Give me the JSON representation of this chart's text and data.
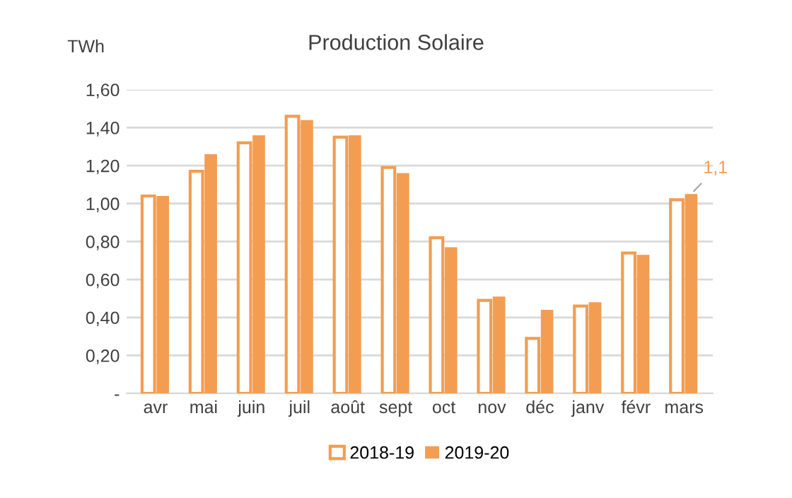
{
  "chart_data": {
    "type": "bar",
    "title": "Production Solaire",
    "ylabel": "TWh",
    "categories": [
      "avr",
      "mai",
      "juin",
      "juil",
      "août",
      "sept",
      "oct",
      "nov",
      "déc",
      "janv",
      "févr",
      "mars"
    ],
    "series": [
      {
        "name": "2018-19",
        "color": "#f29d52",
        "values": [
          1.04,
          1.17,
          1.32,
          1.46,
          1.35,
          1.19,
          0.82,
          0.49,
          0.29,
          0.46,
          0.74,
          1.02
        ]
      },
      {
        "name": "2019-20",
        "color": "#f29d52",
        "values": [
          1.04,
          1.26,
          1.36,
          1.44,
          1.36,
          1.16,
          0.77,
          0.51,
          0.44,
          0.48,
          0.73,
          1.05
        ]
      }
    ],
    "ylim": [
      0,
      1.6
    ],
    "yticks": [
      {
        "value": 0,
        "label": "-"
      },
      {
        "value": 0.2,
        "label": "0,20"
      },
      {
        "value": 0.4,
        "label": "0,40"
      },
      {
        "value": 0.6,
        "label": "0,60"
      },
      {
        "value": 0.8,
        "label": "0,80"
      },
      {
        "value": 1.0,
        "label": "1,00"
      },
      {
        "value": 1.2,
        "label": "1,20"
      },
      {
        "value": 1.4,
        "label": "1,40"
      },
      {
        "value": 1.6,
        "label": "1,60"
      }
    ],
    "annotations": [
      {
        "text": "1,1",
        "x": "mars",
        "y": 1.05
      }
    ],
    "grid": "y",
    "legend": "bottom"
  }
}
